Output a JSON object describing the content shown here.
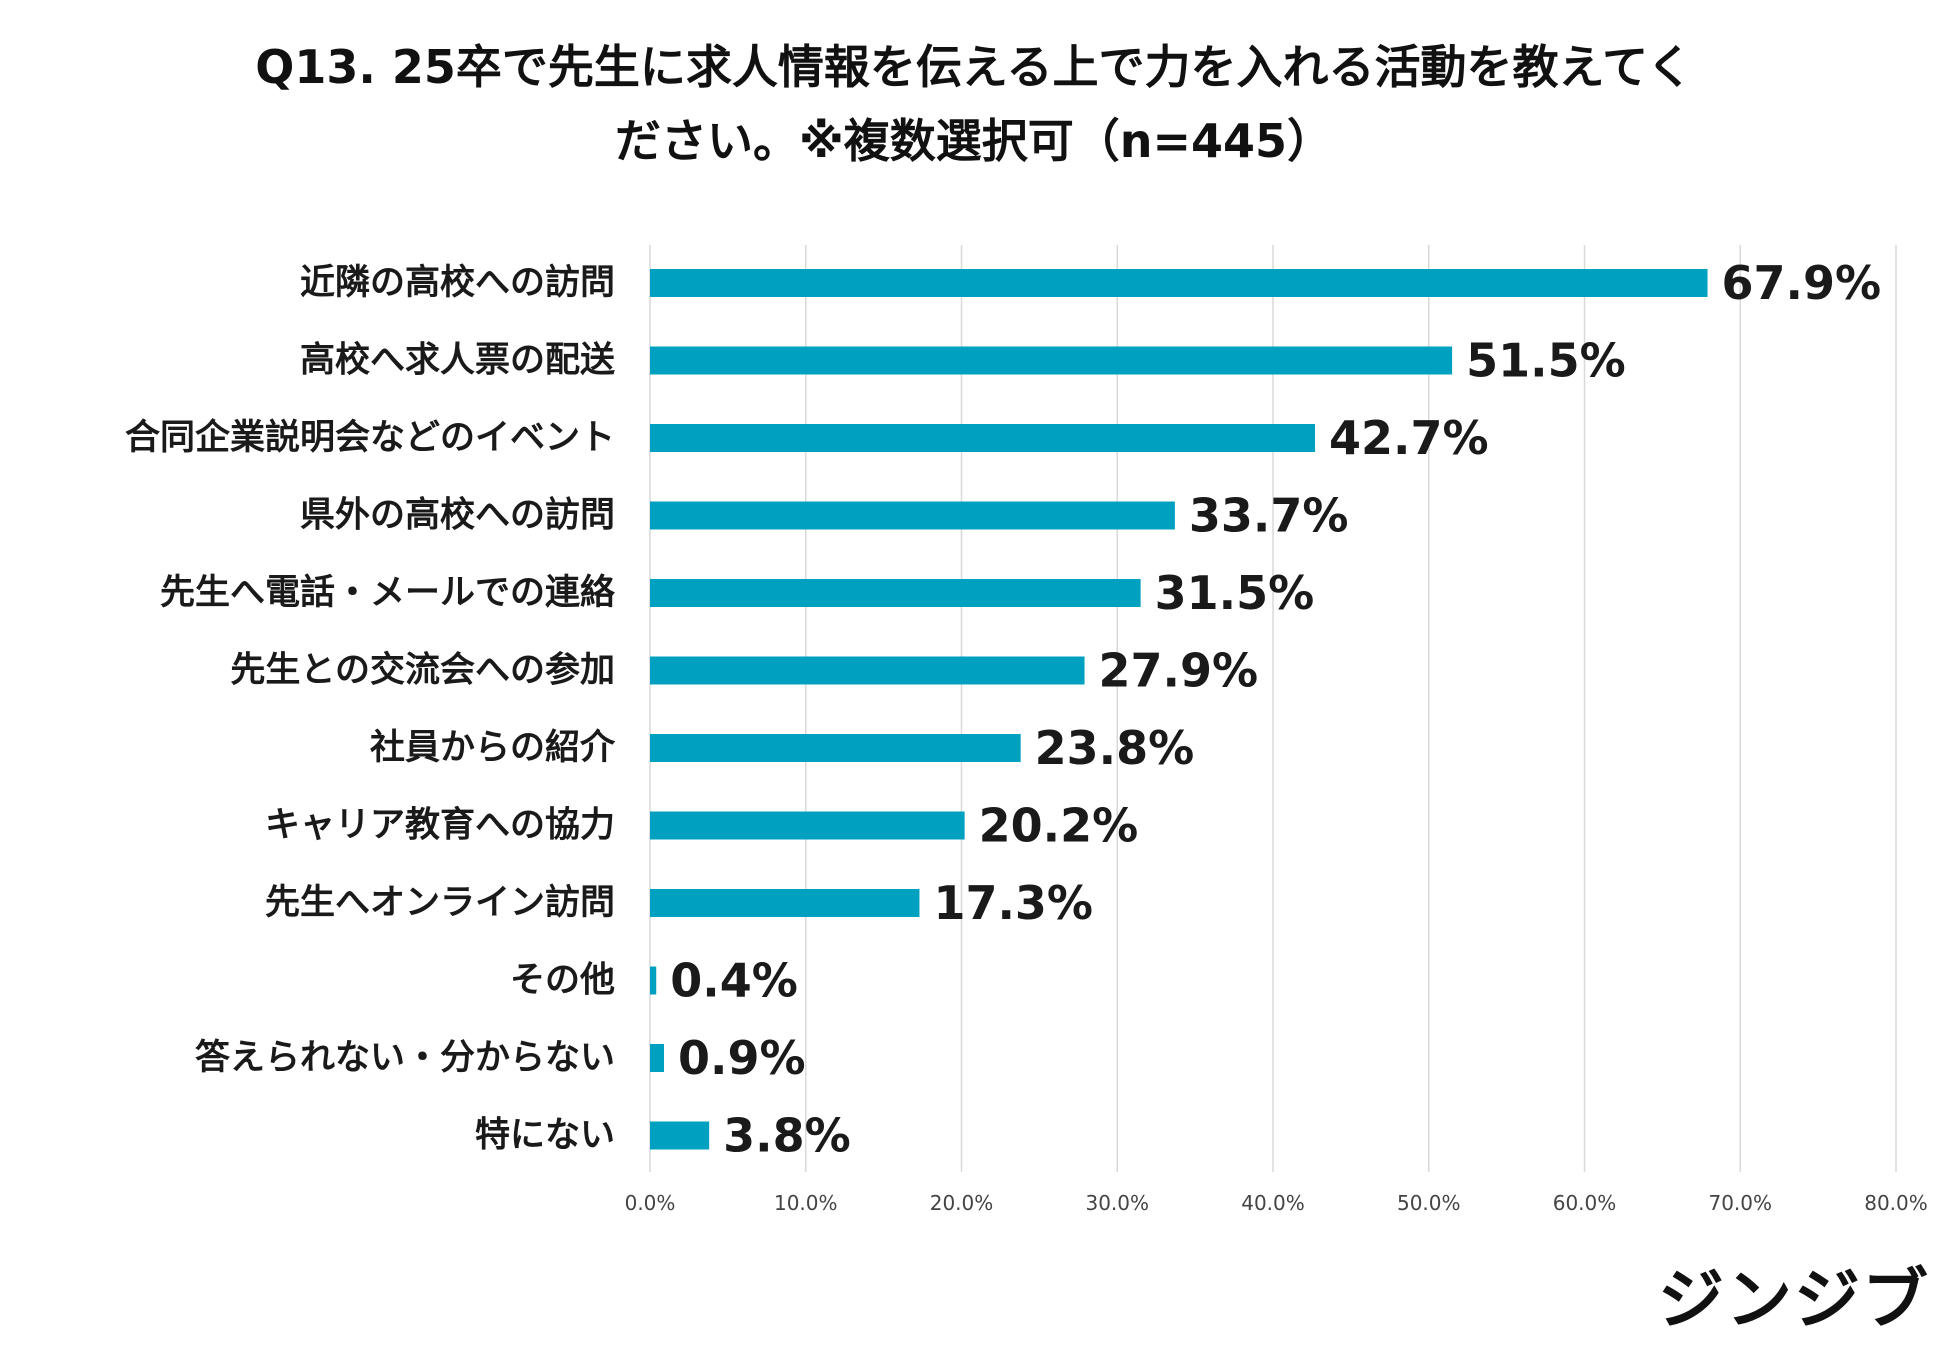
{
  "title": {
    "line1": "Q13. 25卒で先生に求人情報を伝える上で力を入れる活動を教えてく",
    "line2": "ださい。※複数選択可（n=445）"
  },
  "logo": "ジンジブ",
  "colors": {
    "bar": "#00A0C0",
    "grid": "#D9D9D9"
  },
  "chart_data": {
    "type": "bar",
    "orientation": "horizontal",
    "title": "Q13. 25卒で先生に求人情報を伝える上で力を入れる活動を教えてください。※複数選択可（n=445）",
    "categories": [
      "近隣の高校への訪問",
      "高校へ求人票の配送",
      "合同企業説明会などのイベント",
      "県外の高校への訪問",
      "先生へ電話・メールでの連絡",
      "先生との交流会への参加",
      "社員からの紹介",
      "キャリア教育への協力",
      "先生へオンライン訪問",
      "その他",
      "答えられない・分からない",
      "特にない"
    ],
    "values": [
      67.9,
      51.5,
      42.7,
      33.7,
      31.5,
      27.9,
      23.8,
      20.2,
      17.3,
      0.4,
      0.9,
      3.8
    ],
    "value_labels": [
      "67.9%",
      "51.5%",
      "42.7%",
      "33.7%",
      "31.5%",
      "27.9%",
      "23.8%",
      "20.2%",
      "17.3%",
      "0.4%",
      "0.9%",
      "3.8%"
    ],
    "xlim": [
      0,
      80
    ],
    "xticks": [
      0,
      10,
      20,
      30,
      40,
      50,
      60,
      70,
      80
    ],
    "xtick_labels": [
      "0.0%",
      "10.0%",
      "20.0%",
      "30.0%",
      "40.0%",
      "50.0%",
      "60.0%",
      "70.0%",
      "80.0%"
    ],
    "grid": true,
    "xlabel": "",
    "ylabel": ""
  }
}
